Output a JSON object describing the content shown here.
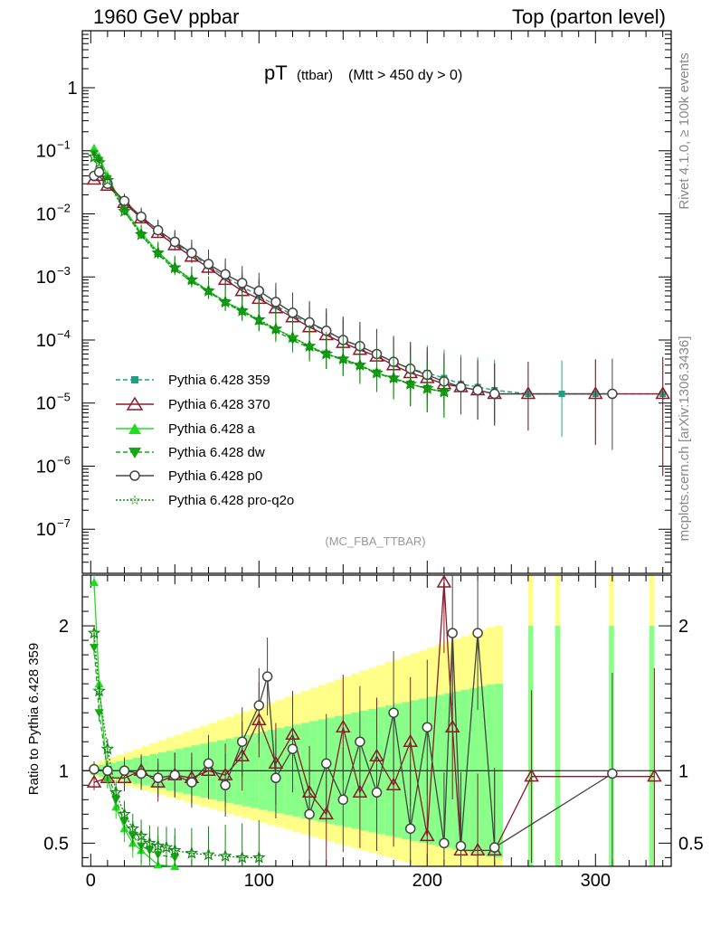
{
  "header": {
    "left": "1960 GeV ppbar",
    "right": "Top (parton level)"
  },
  "side_labels": {
    "rivet": "Rivet 4.1.0, ≥ 100k events",
    "mcplots": "mcplots.cern.ch [arXiv:1306.3436]"
  },
  "colors": {
    "p359": "#20a080",
    "p370": "#8b1a2b",
    "a": "#22dd22",
    "dw": "#11aa11",
    "p0": "#444444",
    "pq2o": "#118811",
    "band_yellow": "#ffff88",
    "band_green": "#88ff88"
  },
  "chart_data": {
    "type": "line",
    "title_main": "pT",
    "title_sub1": "(ttbar)",
    "title_sub2": "(Mtt > 450 dy > 0)",
    "watermark": "(MC_FBA_TTBAR)",
    "ratio_ylabel": "Ratio to Pythia 6.428 359",
    "xlim": [
      -5,
      345
    ],
    "ylim_log": [
      2e-08,
      8
    ],
    "ratio_ylim": [
      0.34,
      2.35
    ],
    "x_ticks": [
      "0",
      "100",
      "200",
      "300"
    ],
    "y_ticks_main": [
      {
        "base": "1",
        "exp": ""
      },
      {
        "base": "10",
        "exp": "−1"
      },
      {
        "base": "10",
        "exp": "−2"
      },
      {
        "base": "10",
        "exp": "−3"
      },
      {
        "base": "10",
        "exp": "−4"
      },
      {
        "base": "10",
        "exp": "−5"
      },
      {
        "base": "10",
        "exp": "−6"
      },
      {
        "base": "10",
        "exp": "−7"
      }
    ],
    "y_ticks_ratio": [
      "0.5",
      "1",
      "2"
    ],
    "legend": [
      "Pythia 6.428 359",
      "Pythia 6.428 370",
      "Pythia 6.428 a",
      "Pythia 6.428 dw",
      "Pythia 6.428 p0",
      "Pythia 6.428 pro-q2o"
    ],
    "series": [
      {
        "name": "Pythia 6.428 359",
        "x": [
          2,
          5,
          10,
          20,
          30,
          40,
          50,
          60,
          70,
          80,
          90,
          100,
          110,
          120,
          130,
          140,
          150,
          160,
          170,
          180,
          190,
          200,
          210,
          220,
          230,
          240,
          260,
          280,
          300,
          340
        ],
        "y": [
          0.04,
          0.045,
          0.03,
          0.016,
          0.009,
          0.0055,
          0.0035,
          0.0023,
          0.0015,
          0.001,
          0.0007,
          0.0005,
          0.00035,
          0.00025,
          0.00018,
          0.00014,
          0.0001,
          8e-05,
          6e-05,
          4.5e-05,
          3.5e-05,
          3e-05,
          2.5e-05,
          2e-05,
          1.8e-05,
          1.6e-05,
          1.4e-05,
          1.4e-05,
          1.4e-05,
          1.4e-05
        ]
      },
      {
        "name": "Pythia 6.428 370",
        "x": [
          2,
          5,
          10,
          20,
          30,
          40,
          50,
          60,
          70,
          80,
          90,
          100,
          110,
          120,
          130,
          140,
          150,
          160,
          170,
          180,
          190,
          200,
          210,
          220,
          230,
          240,
          260,
          300,
          340
        ],
        "y": [
          0.035,
          0.04,
          0.028,
          0.015,
          0.0085,
          0.005,
          0.0032,
          0.0021,
          0.0014,
          0.0009,
          0.0006,
          0.00045,
          0.00032,
          0.00023,
          0.00016,
          0.00012,
          9e-05,
          7e-05,
          5.5e-05,
          4e-05,
          3e-05,
          2.5e-05,
          2e-05,
          1.8e-05,
          1.6e-05,
          1.4e-05,
          1.4e-05,
          1.4e-05,
          1.4e-05
        ]
      },
      {
        "name": "Pythia 6.428 a",
        "x": [
          2,
          5,
          10,
          20,
          30,
          40,
          50,
          60,
          70,
          80,
          90,
          100,
          110,
          120,
          130,
          140,
          150,
          160,
          170,
          180,
          190,
          200,
          210
        ],
        "y": [
          0.11,
          0.08,
          0.04,
          0.012,
          0.005,
          0.0025,
          0.0014,
          0.0009,
          0.0006,
          0.0004,
          0.0003,
          0.0002,
          0.00015,
          0.00011,
          8e-05,
          6e-05,
          5e-05,
          4e-05,
          3e-05,
          2.5e-05,
          2e-05,
          1.7e-05,
          1.5e-05
        ]
      },
      {
        "name": "Pythia 6.428 dw",
        "x": [
          2,
          5,
          10,
          20,
          30,
          40,
          50,
          60,
          70,
          80,
          90,
          100,
          110,
          120,
          130,
          140,
          150,
          160,
          170,
          180,
          190,
          200,
          210
        ],
        "y": [
          0.09,
          0.07,
          0.036,
          0.011,
          0.0046,
          0.0023,
          0.0013,
          0.00085,
          0.00058,
          0.00039,
          0.00028,
          0.0002,
          0.00014,
          0.0001,
          7.5e-05,
          6e-05,
          4.8e-05,
          3.8e-05,
          3e-05,
          2.4e-05,
          2e-05,
          1.7e-05,
          1.5e-05
        ]
      },
      {
        "name": "Pythia 6.428 p0",
        "x": [
          2,
          5,
          10,
          20,
          30,
          40,
          50,
          60,
          70,
          80,
          90,
          100,
          110,
          120,
          130,
          140,
          150,
          160,
          170,
          180,
          190,
          200,
          210,
          220,
          230,
          240,
          310
        ],
        "y": [
          0.04,
          0.046,
          0.03,
          0.016,
          0.009,
          0.0055,
          0.0036,
          0.0024,
          0.0016,
          0.0011,
          0.0008,
          0.0006,
          0.0004,
          0.00027,
          0.00019,
          0.00014,
          0.0001,
          8e-05,
          6e-05,
          4.5e-05,
          3.5e-05,
          2.8e-05,
          2.2e-05,
          1.8e-05,
          1.6e-05,
          1.4e-05,
          1.4e-05
        ]
      },
      {
        "name": "Pythia 6.428 pro-q2o",
        "x": [
          2,
          5,
          10,
          20,
          30,
          40,
          50,
          60,
          70,
          80,
          90,
          100,
          110,
          120,
          130,
          140,
          150,
          160,
          170,
          180,
          190,
          200,
          210
        ],
        "y": [
          0.08,
          0.065,
          0.034,
          0.011,
          0.0047,
          0.0024,
          0.0014,
          0.0009,
          0.0006,
          0.0004,
          0.00029,
          0.00021,
          0.00015,
          0.00011,
          8e-05,
          6e-05,
          5e-05,
          4e-05,
          3e-05,
          2.5e-05,
          2e-05,
          1.7e-05,
          1.5e-05
        ]
      }
    ],
    "ratio_series": [
      {
        "name": "Pythia 6.428 359",
        "x": [
          0,
          345
        ],
        "y": [
          1,
          1
        ]
      },
      {
        "name": "Pythia 6.428 370",
        "x": [
          2,
          10,
          20,
          30,
          40,
          50,
          60,
          70,
          80,
          90,
          100,
          110,
          120,
          130,
          140,
          150,
          160,
          170,
          180,
          190,
          200,
          210,
          215,
          220,
          230,
          240,
          262,
          335
        ],
        "y": [
          0.92,
          0.95,
          0.95,
          1.0,
          0.92,
          0.97,
          0.95,
          1.0,
          0.97,
          1.1,
          1.35,
          1.05,
          1.25,
          0.85,
          0.7,
          1.3,
          0.85,
          1.1,
          0.9,
          1.2,
          0.55,
          2.3,
          1.3,
          0.45,
          0.45,
          0.45,
          0.96,
          0.96
        ]
      },
      {
        "name": "Pythia 6.428 a",
        "x": [
          2,
          5,
          10,
          15,
          20,
          25,
          30,
          40,
          50
        ],
        "y": [
          2.3,
          1.6,
          0.95,
          0.75,
          0.6,
          0.5,
          0.45,
          0.35,
          0.34
        ]
      },
      {
        "name": "Pythia 6.428 dw",
        "x": [
          2,
          5,
          10,
          15,
          20,
          25,
          30,
          35,
          40,
          50
        ],
        "y": [
          1.85,
          1.4,
          1.0,
          0.8,
          0.65,
          0.55,
          0.48,
          0.45,
          0.42,
          0.4
        ]
      },
      {
        "name": "Pythia 6.428 p0",
        "x": [
          2,
          10,
          20,
          30,
          40,
          50,
          60,
          70,
          80,
          90,
          100,
          105,
          110,
          120,
          130,
          140,
          150,
          160,
          170,
          180,
          190,
          200,
          210,
          215,
          220,
          230,
          240,
          310
        ],
        "y": [
          1.01,
          1.0,
          1.0,
          0.98,
          0.95,
          0.97,
          0.92,
          1.05,
          0.9,
          1.2,
          1.45,
          1.65,
          0.95,
          1.15,
          0.7,
          1.05,
          0.8,
          1.2,
          0.85,
          1.4,
          0.6,
          1.3,
          0.5,
          1.95,
          0.48,
          1.95,
          0.47,
          0.98
        ]
      },
      {
        "name": "Pythia 6.428 pro-q2o",
        "x": [
          2,
          5,
          10,
          15,
          20,
          25,
          30,
          35,
          40,
          45,
          50,
          60,
          70,
          80,
          90,
          100
        ],
        "y": [
          1.95,
          1.55,
          1.15,
          0.85,
          0.7,
          0.6,
          0.55,
          0.5,
          0.48,
          0.47,
          0.45,
          0.43,
          0.42,
          0.41,
          0.4,
          0.4
        ]
      }
    ]
  }
}
